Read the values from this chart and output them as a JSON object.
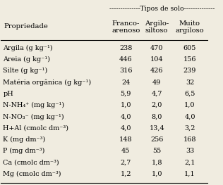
{
  "title": "--------------Tipos de solo--------------",
  "header_col0": "Propriedade",
  "col_headers": [
    "Franco-\narenoso",
    "Argilo-\nsiltoso",
    "Muito\nargiloso"
  ],
  "rows": [
    [
      "Argila (g kg⁻¹)",
      "238",
      "470",
      "605"
    ],
    [
      "Areia (g kg⁻¹)",
      "446",
      "104",
      "156"
    ],
    [
      "Silte (g kg⁻¹)",
      "316",
      "426",
      "239"
    ],
    [
      "Matéria orgânica (g kg⁻¹)",
      "24",
      "49",
      "32"
    ],
    [
      "pH",
      "5,9",
      "4,7",
      "6,5"
    ],
    [
      "N-NH₄⁺ (mg kg⁻¹)",
      "1,0",
      "2,0",
      "1,0"
    ],
    [
      "N-NO₃⁻ (mg kg⁻¹)",
      "4,0",
      "8,0",
      "4,0"
    ],
    [
      "H+Al (cmolᴄ dm⁻³)",
      "4,0",
      "13,4",
      "3,2"
    ],
    [
      "K (mg dm⁻³)",
      "148",
      "256",
      "168"
    ],
    [
      "P (mg dm⁻³)",
      "45",
      "55",
      "33"
    ],
    [
      "Ca (cmolᴄ dm⁻³)",
      "2,7",
      "1,8",
      "2,1"
    ],
    [
      "Mg (cmolᴄ dm⁻³)",
      "1,2",
      "1,0",
      "1,1"
    ]
  ],
  "bg_color": "#f0ece0",
  "font_size": 7.2
}
